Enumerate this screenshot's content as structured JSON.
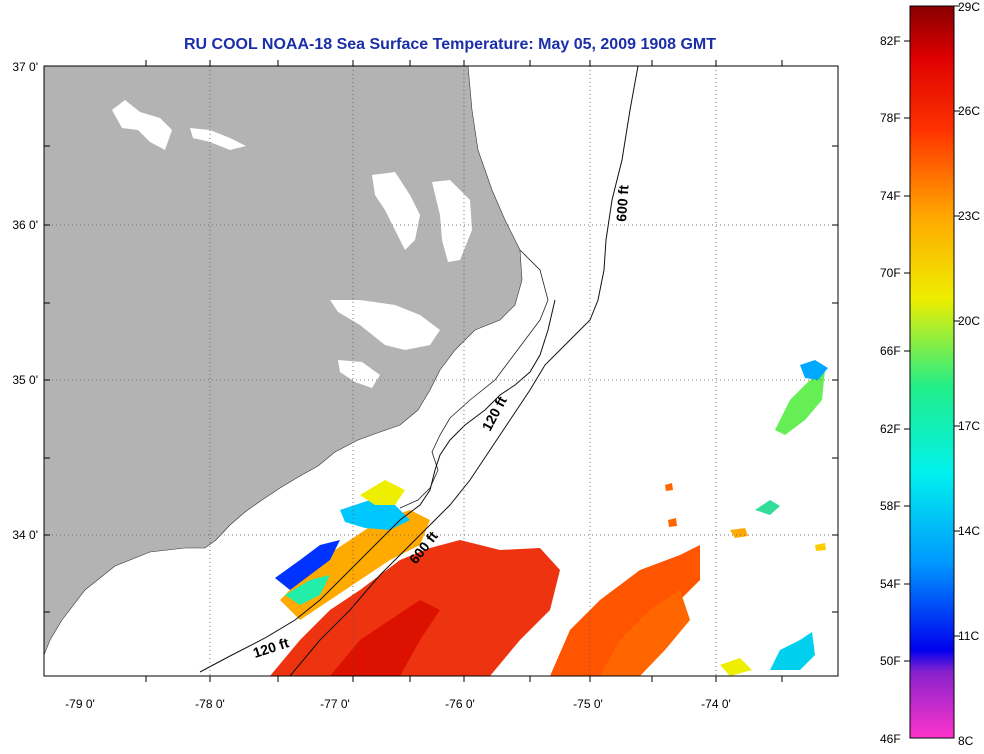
{
  "title": "RU COOL  NOAA-18  Sea Surface Temperature:  May 05, 2009 1908 GMT",
  "latitude_labels": [
    "37 0'",
    "36 0'",
    "35 0'",
    "34 0'"
  ],
  "longitude_labels": [
    "-79 0'",
    "-78 0'",
    "-77 0'",
    "-76 0'",
    "-75 0'",
    "-74 0'"
  ],
  "isobath_labels": [
    "600 ft",
    "120 ft",
    "600 ft",
    "120 ft"
  ],
  "colorbar": {
    "fahrenheit": [
      "82F",
      "78F",
      "74F",
      "70F",
      "66F",
      "62F",
      "58F",
      "54F",
      "50F",
      "46F"
    ],
    "celsius": [
      "29C",
      "26C",
      "23C",
      "20C",
      "17C",
      "14C",
      "11C",
      "8C"
    ]
  },
  "colors": {
    "title": "#1b2fa8",
    "land": "#b3b3b3",
    "warm_water": "#ee3311",
    "cool_water": "#00c8ff"
  }
}
